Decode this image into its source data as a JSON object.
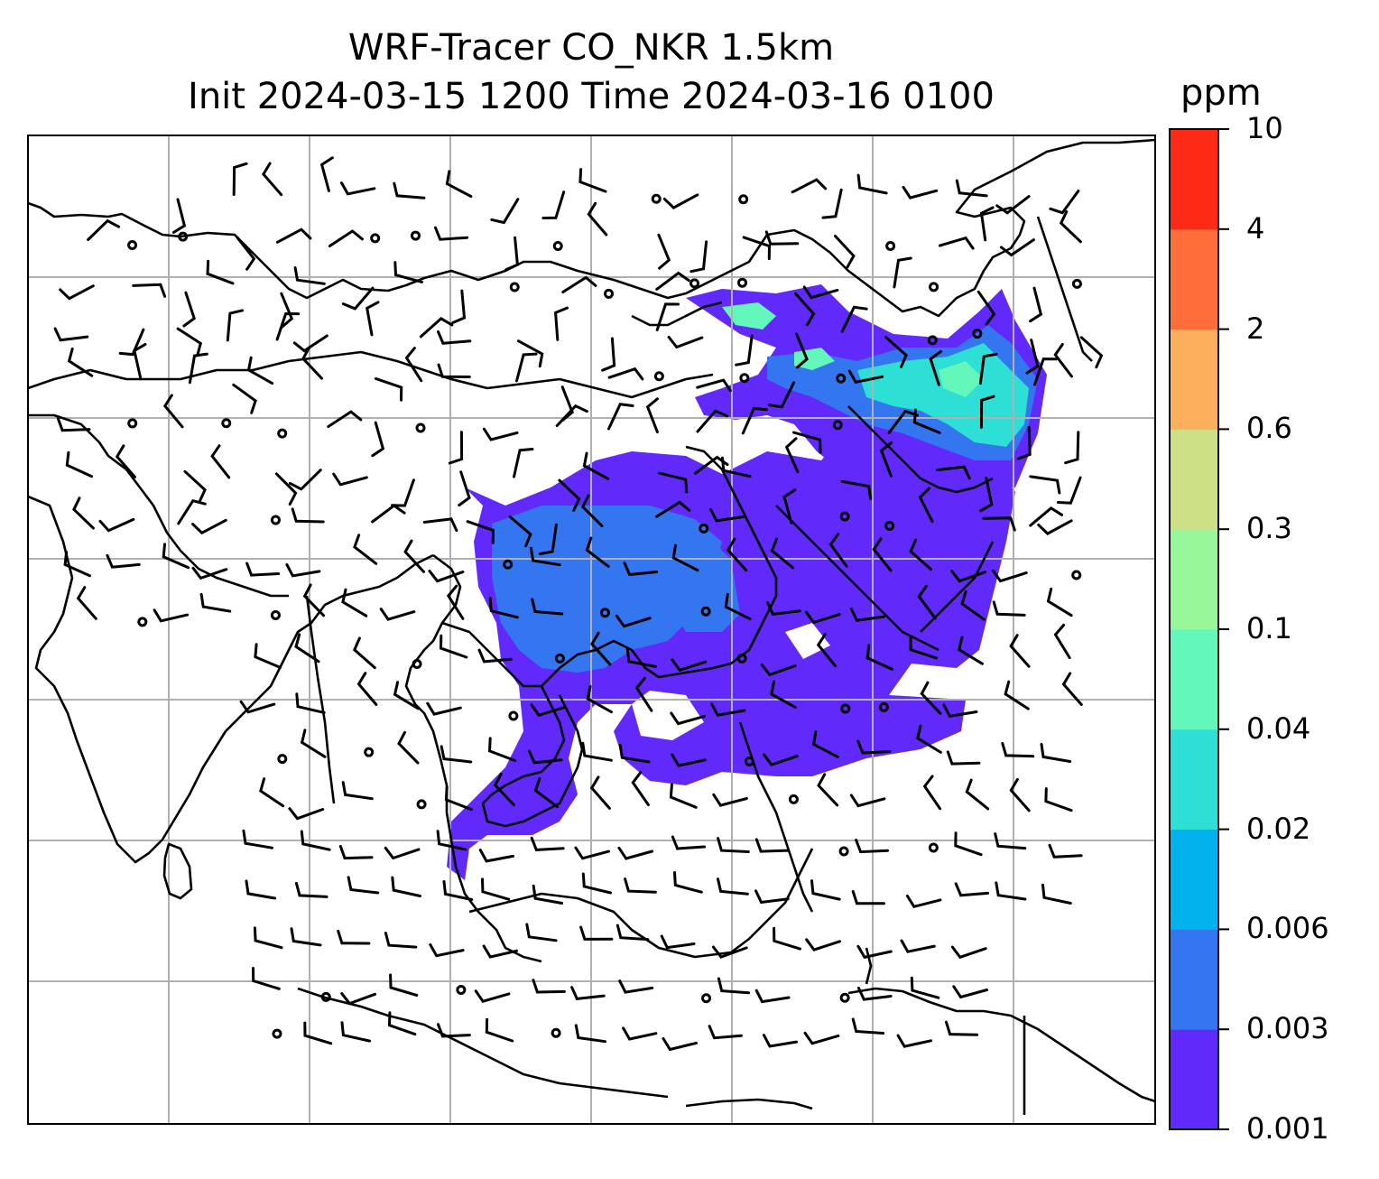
{
  "title": {
    "line1": "WRF-Tracer CO_NKR 1.5km",
    "line2": "Init 2024-03-15 1200 Time 2024-03-16 0100"
  },
  "colorbar": {
    "unit": "ppm",
    "ticks": [
      "0.001",
      "0.003",
      "0.006",
      "0.02",
      "0.04",
      "0.1",
      "0.3",
      "0.6",
      "2",
      "4",
      "10"
    ],
    "colors": [
      "#6229fb",
      "#3475f0",
      "#02b2ec",
      "#2ddfd5",
      "#64f7bc",
      "#98f79a",
      "#cde085",
      "#fdaf5e",
      "#fe6d3a",
      "#fd2b15"
    ]
  },
  "map": {
    "grid": true,
    "features": [
      "coastlines",
      "country-borders",
      "wind-barbs",
      "co-concentration-field"
    ]
  }
}
